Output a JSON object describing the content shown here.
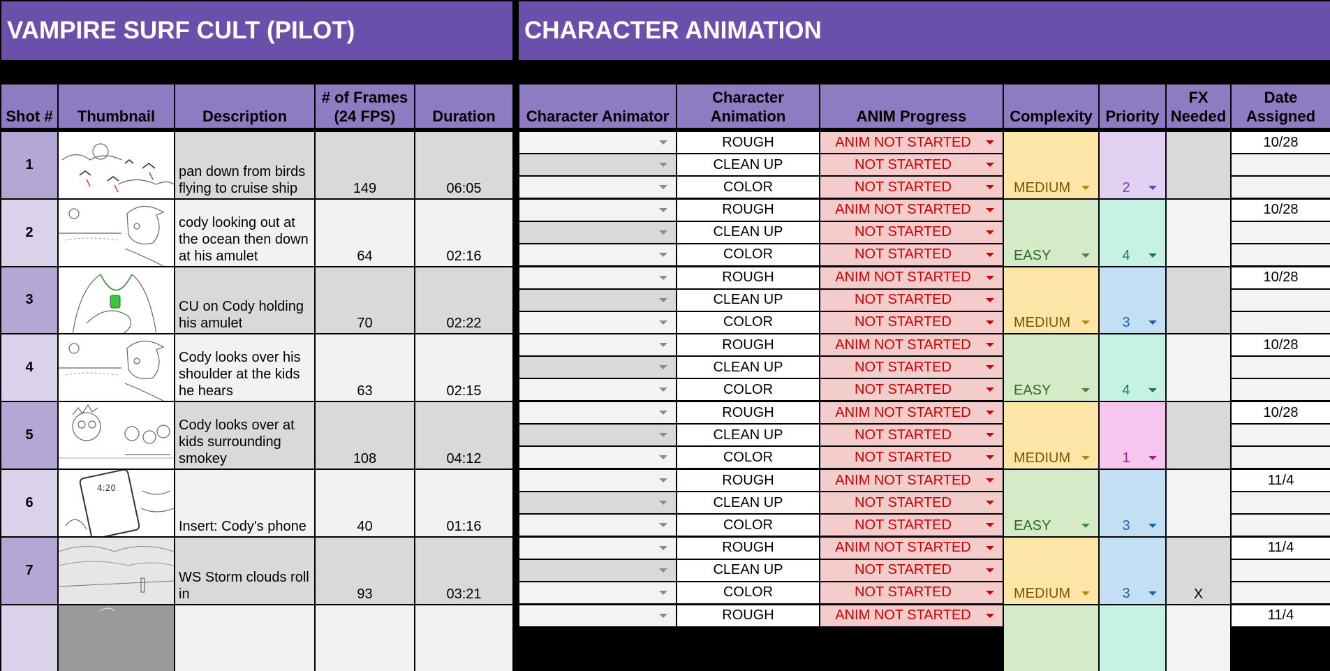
{
  "sheet": {
    "title_left": "VAMPIRE SURF CULT (PILOT)",
    "title_right": "CHARACTER ANIMATION"
  },
  "headers": {
    "shot": "Shot #",
    "thumbnail": "Thumbnail",
    "description": "Description",
    "frames": "# of Frames (24 FPS)",
    "duration": "Duration",
    "animator": "Character Animator",
    "char_anim": "Character Animation",
    "progress": "ANIM Progress",
    "complexity": "Complexity",
    "priority": "Priority",
    "fx": "FX Needed",
    "date": "Date Assigned"
  },
  "colors": {
    "title_bg": "#6a4fab",
    "header_bg": "#8e7cc3",
    "progress_bg": "#f4cccc",
    "progress_text": "#cc0000",
    "medium_bg": "#fce5a8",
    "easy_bg": "#d3e8c4"
  },
  "shots": [
    {
      "num": "1",
      "thumb": "birds-over-clouds sketch",
      "desc": "pan down from birds flying to cruise ship",
      "frames": "149",
      "duration": "06:05",
      "stages": [
        "ROUGH",
        "CLEAN UP",
        "COLOR"
      ],
      "progress": [
        "ANIM NOT STARTED",
        "NOT STARTED",
        "NOT STARTED"
      ],
      "complexity": "MEDIUM",
      "priority": "2",
      "fx": "",
      "date": "10/28"
    },
    {
      "num": "2",
      "thumb": "cody-profile sketch",
      "desc": "cody looking out at the ocean then down at his amulet",
      "frames": "64",
      "duration": "02:16",
      "stages": [
        "ROUGH",
        "CLEAN UP",
        "COLOR"
      ],
      "progress": [
        "ANIM NOT STARTED",
        "NOT STARTED",
        "NOT STARTED"
      ],
      "complexity": "EASY",
      "priority": "4",
      "fx": "",
      "date": "10/28"
    },
    {
      "num": "3",
      "thumb": "amulet-closeup sketch",
      "desc": "CU on Cody holding his amulet",
      "frames": "70",
      "duration": "02:22",
      "stages": [
        "ROUGH",
        "CLEAN UP",
        "COLOR"
      ],
      "progress": [
        "ANIM NOT STARTED",
        "NOT STARTED",
        "NOT STARTED"
      ],
      "complexity": "MEDIUM",
      "priority": "3",
      "fx": "",
      "date": "10/28"
    },
    {
      "num": "4",
      "thumb": "cody-profile sketch",
      "desc": "Cody looks over his shoulder at the kids he hears",
      "frames": "63",
      "duration": "02:15",
      "stages": [
        "ROUGH",
        "CLEAN UP",
        "COLOR"
      ],
      "progress": [
        "ANIM NOT STARTED",
        "NOT STARTED",
        "NOT STARTED"
      ],
      "complexity": "EASY",
      "priority": "4",
      "fx": "",
      "date": "10/28"
    },
    {
      "num": "5",
      "thumb": "kids-crowd sketch",
      "desc": "Cody looks over at kids surrounding smokey",
      "frames": "108",
      "duration": "04:12",
      "stages": [
        "ROUGH",
        "CLEAN UP",
        "COLOR"
      ],
      "progress": [
        "ANIM NOT STARTED",
        "NOT STARTED",
        "NOT STARTED"
      ],
      "complexity": "MEDIUM",
      "priority": "1",
      "fx": "",
      "date": "10/28"
    },
    {
      "num": "6",
      "thumb": "phone-insert sketch",
      "desc": "Insert: Cody's phone",
      "frames": "40",
      "duration": "01:16",
      "stages": [
        "ROUGH",
        "CLEAN UP",
        "COLOR"
      ],
      "progress": [
        "ANIM NOT STARTED",
        "NOT STARTED",
        "NOT STARTED"
      ],
      "complexity": "EASY",
      "priority": "3",
      "fx": "",
      "date": "11/4"
    },
    {
      "num": "7",
      "thumb": "storm-clouds sketch",
      "desc": "WS Storm clouds roll in",
      "frames": "93",
      "duration": "03:21",
      "stages": [
        "ROUGH",
        "CLEAN UP",
        "COLOR"
      ],
      "progress": [
        "ANIM NOT STARTED",
        "NOT STARTED",
        "NOT STARTED"
      ],
      "complexity": "MEDIUM",
      "priority": "3",
      "fx": "X",
      "date": "11/4"
    },
    {
      "num": "",
      "thumb": "partial sketch",
      "desc": "",
      "frames": "",
      "duration": "",
      "stages": [
        "ROUGH"
      ],
      "progress": [
        "ANIM NOT STARTED"
      ],
      "complexity": "",
      "priority": "",
      "fx": "",
      "date": "11/4"
    }
  ]
}
